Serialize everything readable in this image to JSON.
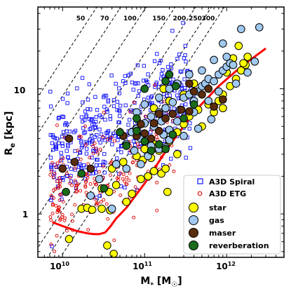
{
  "chart_data": {
    "type": "scatter",
    "xlabel": "M$_*$ [M$_\\odot$]",
    "xlabel_main": "M",
    "xlabel_sub": "*",
    "xlabel_unit_open": " [M",
    "xlabel_unit_sub": "☉",
    "xlabel_unit_close": "]",
    "ylabel_main": "R",
    "ylabel_sub": "e",
    "ylabel_unit": " [kpc]",
    "xscale": "log",
    "yscale": "log",
    "xlim": [
      5000000000,
      5000000000000
    ],
    "ylim": [
      0.45,
      45
    ],
    "x_ticks": [
      {
        "value": 10000000000,
        "base": "10",
        "exp": "10"
      },
      {
        "value": 100000000000,
        "base": "10",
        "exp": "11"
      },
      {
        "value": 1000000000000,
        "base": "10",
        "exp": "12"
      }
    ],
    "y_ticks": [
      {
        "value": 1,
        "label": "1"
      },
      {
        "value": 10,
        "label": "10"
      }
    ],
    "velocity_lines": [
      {
        "label": "50",
        "v": 50
      },
      {
        "label": "70",
        "v": 70
      },
      {
        "label": "100",
        "v": 100
      },
      {
        "label": "150",
        "v": 150
      },
      {
        "label": "200",
        "v": 200
      },
      {
        "label": "250",
        "v": 250
      },
      {
        "label": "300",
        "v": 300
      }
    ],
    "series": [
      {
        "name": "A3D Spiral",
        "marker": "square-open",
        "color": "#1010ff",
        "points": [],
        "generated_count": 420
      },
      {
        "name": "A3D ETG",
        "marker": "circle-open-small",
        "color": "#e00000",
        "points": [],
        "generated_count": 230
      },
      {
        "name": "star",
        "marker": "circle",
        "color": "#ffff00",
        "points": [
          [
            12000000000,
            0.63
          ],
          [
            35000000000,
            0.56
          ],
          [
            42000000000,
            0.48
          ],
          [
            17000000000,
            1.1
          ],
          [
            20000000000,
            1.12
          ],
          [
            23000000000,
            1.08
          ],
          [
            30000000000,
            1.1
          ],
          [
            38000000000,
            1.07
          ],
          [
            60000000000,
            1.25
          ],
          [
            30000000000,
            1.6
          ],
          [
            37000000000,
            1.5
          ],
          [
            45000000000,
            1.7
          ],
          [
            70000000000,
            1.45
          ],
          [
            90000000000,
            1.9
          ],
          [
            110000000000,
            2.0
          ],
          [
            190000000000,
            1.5
          ],
          [
            130000000000,
            2.2
          ],
          [
            160000000000,
            2.1
          ],
          [
            180000000000,
            2.3
          ],
          [
            40000000000,
            2.3
          ],
          [
            55000000000,
            2.6
          ],
          [
            80000000000,
            2.9
          ],
          [
            95000000000,
            2.7
          ],
          [
            120000000000,
            2.8
          ],
          [
            150000000000,
            3.2
          ],
          [
            100000000000,
            3.3
          ],
          [
            130000000000,
            3.6
          ],
          [
            200000000000,
            3.8
          ],
          [
            250000000000,
            4.5
          ],
          [
            300000000000,
            5.2
          ],
          [
            350000000000,
            6.0
          ],
          [
            450000000000,
            6.8
          ],
          [
            600000000000,
            7.5
          ],
          [
            800000000000,
            8.0
          ],
          [
            900000000000,
            9.0
          ],
          [
            1100000000000,
            10.5
          ],
          [
            1300000000000,
            12.0
          ],
          [
            1500000000000,
            14.0
          ],
          [
            1700000000000,
            15.5
          ],
          [
            1200000000000,
            17.5
          ],
          [
            1600000000000,
            16.0
          ],
          [
            1800000000000,
            18.0
          ],
          [
            1400000000000,
            22.0
          ],
          [
            300000000000,
            9.0
          ],
          [
            400000000000,
            11.0
          ],
          [
            200000000000,
            8.0
          ],
          [
            130000000000,
            7.0
          ],
          [
            170000000000,
            10.0
          ],
          [
            1000000000000,
            13.5
          ],
          [
            700000000000,
            6.5
          ],
          [
            500000000000,
            5.0
          ],
          [
            250000000000,
            3.0
          ],
          [
            900000000000,
            7.0
          ]
        ]
      },
      {
        "name": "gas",
        "marker": "circle",
        "color": "#a0c8f0",
        "points": [
          [
            40000000000,
            1.1
          ],
          [
            22000000000,
            1.4
          ],
          [
            28000000000,
            1.9
          ],
          [
            45000000000,
            2.5
          ],
          [
            60000000000,
            2.3
          ],
          [
            75000000000,
            3.2
          ],
          [
            90000000000,
            2.5
          ],
          [
            110000000000,
            2.9
          ],
          [
            150000000000,
            3.3
          ],
          [
            180000000000,
            3.4
          ],
          [
            200000000000,
            3.9
          ],
          [
            60000000000,
            3.6
          ],
          [
            70000000000,
            4.5
          ],
          [
            80000000000,
            4.8
          ],
          [
            100000000000,
            5.3
          ],
          [
            130000000000,
            5.0
          ],
          [
            160000000000,
            5.5
          ],
          [
            200000000000,
            4.7
          ],
          [
            250000000000,
            5.5
          ],
          [
            120000000000,
            6.0
          ],
          [
            150000000000,
            6.5
          ],
          [
            180000000000,
            7.0
          ],
          [
            220000000000,
            7.8
          ],
          [
            270000000000,
            6.8
          ],
          [
            300000000000,
            8.5
          ],
          [
            350000000000,
            9.0
          ],
          [
            400000000000,
            8.0
          ],
          [
            450000000000,
            9.5
          ],
          [
            500000000000,
            10.5
          ],
          [
            550000000000,
            11.0
          ],
          [
            600000000000,
            12.0
          ],
          [
            700000000000,
            11.5
          ],
          [
            800000000000,
            13.0
          ],
          [
            900000000000,
            14.0
          ],
          [
            1000000000000,
            15.0
          ],
          [
            1100000000000,
            16.0
          ],
          [
            1200000000000,
            15.5
          ],
          [
            1000000000000,
            18.0
          ],
          [
            700000000000,
            17.0
          ],
          [
            500000000000,
            14.0
          ],
          [
            350000000000,
            13.0
          ],
          [
            250000000000,
            11.0
          ],
          [
            200000000000,
            10.0
          ],
          [
            100000000000,
            7.5
          ],
          [
            80000000000,
            6.5
          ],
          [
            150000000000,
            8.5
          ],
          [
            1500000000000,
            30.0
          ],
          [
            2500000000000,
            31.0
          ],
          [
            900000000000,
            23.0
          ],
          [
            400000000000,
            6.5
          ],
          [
            600000000000,
            8.0
          ],
          [
            800000000000,
            9.5
          ],
          [
            1300000000000,
            11.0
          ],
          [
            650000000000,
            5.7
          ],
          [
            450000000000,
            4.8
          ],
          [
            300000000000,
            4.2
          ],
          [
            1800000000000,
            13.5
          ],
          [
            2200000000000,
            16.5
          ],
          [
            120000000000,
            3.5
          ],
          [
            170000000000,
            4.3
          ],
          [
            90000000000,
            4.0
          ]
        ]
      },
      {
        "name": "maser",
        "marker": "circle",
        "color": "#5a2d0c",
        "points": [
          [
            12000000000,
            4.0
          ],
          [
            10000000000,
            2.3
          ],
          [
            14000000000,
            2.6
          ],
          [
            22000000000,
            2.3
          ],
          [
            55000000000,
            4.2
          ],
          [
            80000000000,
            4.2
          ],
          [
            90000000000,
            5.2
          ],
          [
            100000000000,
            4.4
          ],
          [
            120000000000,
            4.0
          ],
          [
            150000000000,
            4.6
          ],
          [
            180000000000,
            5.8
          ],
          [
            220000000000,
            6.3
          ],
          [
            280000000000,
            6.8
          ],
          [
            350000000000,
            6.6
          ],
          [
            500000000000,
            9.0
          ],
          [
            600000000000,
            10.0
          ],
          [
            700000000000,
            7.2
          ],
          [
            900000000000,
            8.2
          ],
          [
            400000000000,
            9.5
          ],
          [
            350000000000,
            11.0
          ],
          [
            150000000000,
            6.3
          ],
          [
            130000000000,
            5.3
          ]
        ]
      },
      {
        "name": "reverberation",
        "marker": "circle",
        "color": "#1a6b1a",
        "points": [
          [
            11000000000,
            1.5
          ],
          [
            17000000000,
            2.1
          ],
          [
            32000000000,
            1.6
          ],
          [
            50000000000,
            4.5
          ],
          [
            60000000000,
            3.5
          ],
          [
            80000000000,
            4.6
          ],
          [
            100000000000,
            3.8
          ],
          [
            120000000000,
            3.2
          ],
          [
            150000000000,
            3.6
          ],
          [
            180000000000,
            3.3
          ],
          [
            220000000000,
            4.3
          ],
          [
            300000000000,
            5.8
          ],
          [
            180000000000,
            11.5
          ],
          [
            200000000000,
            13.0
          ],
          [
            240000000000,
            10.5
          ],
          [
            100000000000,
            10.0
          ],
          [
            80000000000,
            5.8
          ],
          [
            400000000000,
            7.5
          ]
        ]
      }
    ],
    "fit_line": {
      "color": "#ff0000",
      "points": [
        [
          7500000000,
          0.86
        ],
        [
          10000000000,
          0.8
        ],
        [
          15000000000,
          0.73
        ],
        [
          20000000000,
          0.7
        ],
        [
          24000000000,
          0.69
        ],
        [
          28000000000,
          0.69
        ],
        [
          33000000000,
          0.71
        ],
        [
          38000000000,
          0.79
        ],
        [
          45000000000,
          0.92
        ],
        [
          60000000000,
          1.12
        ],
        [
          100000000000,
          1.75
        ],
        [
          200000000000,
          3.5
        ],
        [
          400000000000,
          6.5
        ],
        [
          800000000000,
          10.5
        ],
        [
          1500000000000,
          15.0
        ],
        [
          3000000000000,
          21.0
        ]
      ]
    },
    "legend": {
      "placement": "bottom-right",
      "items": [
        {
          "label": "A3D Spiral",
          "series": "A3D Spiral"
        },
        {
          "label": "A3D ETG",
          "series": "A3D ETG"
        },
        {
          "label": "star",
          "series": "star"
        },
        {
          "label": "gas",
          "series": "gas"
        },
        {
          "label": "maser",
          "series": "maser"
        },
        {
          "label": "reverberation",
          "series": "reverberation"
        }
      ]
    }
  }
}
